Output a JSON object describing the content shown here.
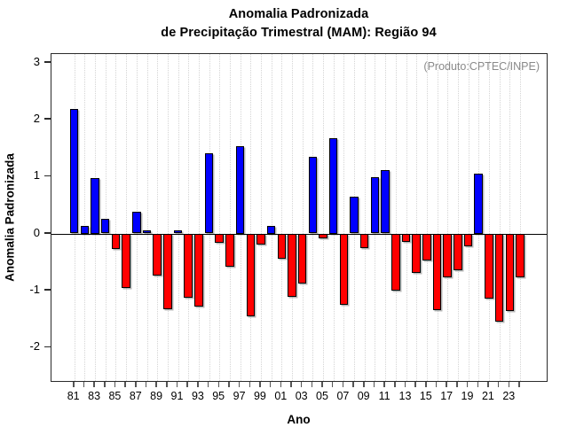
{
  "title": {
    "line1": "Anomalia Padronizada",
    "line2": "de Precipitação Trimestral (MAM): Região 94"
  },
  "annotation": "(Produto:CPTEC/INPE)",
  "chart_data": {
    "type": "bar",
    "title": "Anomalia Padronizada de Precipitação Trimestral (MAM): Região 94",
    "xlabel": "Ano",
    "ylabel": "Anomalia Padronizada",
    "x": [
      1981,
      1982,
      1983,
      1984,
      1985,
      1986,
      1987,
      1988,
      1989,
      1990,
      1991,
      1992,
      1993,
      1994,
      1995,
      1996,
      1997,
      1998,
      1999,
      2000,
      2001,
      2002,
      2003,
      2004,
      2005,
      2006,
      2007,
      2008,
      2009,
      2010,
      2011,
      2012,
      2013,
      2014,
      2015,
      2016,
      2017,
      2018,
      2019,
      2020,
      2021,
      2022,
      2023,
      2024
    ],
    "values": [
      2.18,
      0.14,
      0.98,
      0.26,
      -0.27,
      -0.95,
      0.38,
      0.06,
      -0.74,
      -1.33,
      0.05,
      -1.13,
      -1.28,
      1.41,
      -0.17,
      -0.59,
      1.54,
      -1.45,
      -0.19,
      0.14,
      -0.44,
      -1.11,
      -0.88,
      1.35,
      -0.09,
      1.68,
      -1.25,
      0.64,
      -0.25,
      0.99,
      1.11,
      -1.01,
      -0.15,
      -0.69,
      -0.47,
      -1.35,
      -0.77,
      -0.65,
      -0.22,
      1.05,
      -1.14,
      -1.54,
      -1.36,
      -0.77
    ],
    "xtick_labels": [
      "81",
      "83",
      "85",
      "87",
      "89",
      "91",
      "93",
      "95",
      "97",
      "99",
      "01",
      "03",
      "05",
      "07",
      "09",
      "11",
      "13",
      "15",
      "17",
      "19",
      "21",
      "23"
    ],
    "yticks": [
      3,
      2,
      1,
      0,
      -1,
      -2
    ],
    "ylim": [
      -2.6,
      3.15
    ],
    "grid": "vertical-dotted",
    "legend": "none",
    "positive_color": "#0000ff",
    "negative_color": "#ff0000",
    "bar_border_color": "#000000",
    "annotation_color": "#8a8a8a"
  }
}
